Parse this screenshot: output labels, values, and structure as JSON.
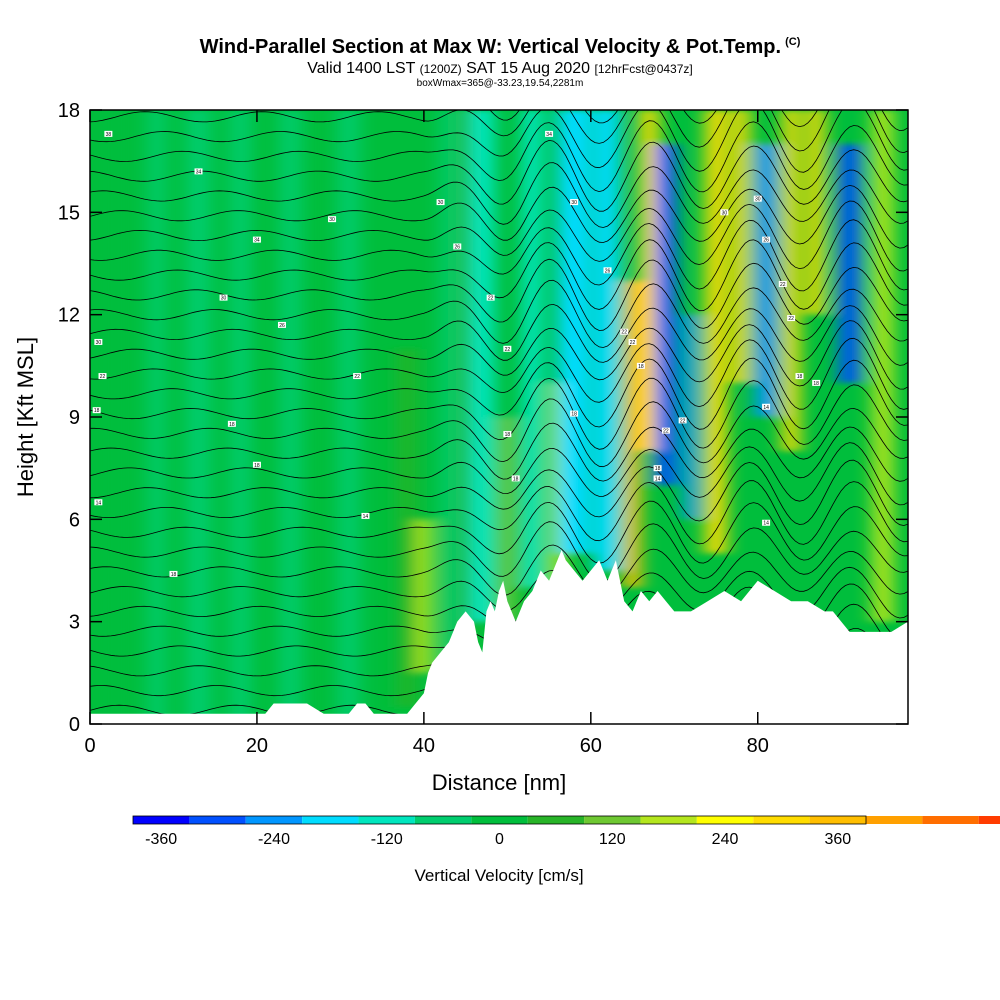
{
  "chart_data": {
    "type": "heatmap",
    "title": "Wind-Parallel Section at Max W: Vertical Velocity & Pot.Temp.",
    "title_tag": "(C)",
    "subtitle_main": "Valid 1400 LST",
    "subtitle_z": "(1200Z)",
    "subtitle_date": "SAT 15 Aug 2020",
    "subtitle_fcst": "[12hrFcst@0437z]",
    "info": "boxWmax=365@-33.23,19.54,2281m",
    "xlabel": "Distance [nm]",
    "ylabel": "Height [Kft MSL]",
    "xlim": [
      0,
      98
    ],
    "ylim": [
      0,
      18
    ],
    "x_ticks": [
      0,
      20,
      40,
      60,
      80
    ],
    "y_ticks": [
      0,
      3,
      6,
      9,
      12,
      15,
      18
    ],
    "colorbar": {
      "title": "Vertical Velocity [cm/s]",
      "min": -390,
      "max": 390,
      "step": 60,
      "tick_values": [
        -360,
        -240,
        -120,
        0,
        120,
        240,
        360
      ],
      "colors": [
        "#0000ff",
        "#0050ff",
        "#0096ff",
        "#00dcff",
        "#00e6be",
        "#00cd6e",
        "#00be3c",
        "#28b428",
        "#6ec832",
        "#b4e61e",
        "#ffff00",
        "#ffdc00",
        "#ffbe00",
        "#ffa000",
        "#ff6e00",
        "#ff3c00",
        "#e61400",
        "#c8003c"
      ]
    },
    "terrain_profile": {
      "x": [
        0,
        2,
        4,
        6,
        8,
        10,
        12,
        14,
        16,
        18,
        20,
        21,
        22,
        24,
        26,
        28,
        30,
        31,
        32,
        33,
        34,
        36,
        38,
        40,
        40.5,
        41,
        42,
        43,
        44,
        45,
        46,
        46.5,
        47,
        47.5,
        48,
        48.5,
        49,
        49.5,
        50,
        51,
        52,
        53,
        54,
        55,
        56,
        56.5,
        57,
        58,
        59,
        60,
        61,
        62,
        63,
        64,
        65,
        66,
        67,
        68,
        69,
        70,
        72,
        74,
        76,
        78,
        80,
        82,
        84,
        86,
        88,
        89,
        90,
        91,
        92,
        94,
        96,
        98
      ],
      "height_kft": [
        0.3,
        0.3,
        0.3,
        0.3,
        0.3,
        0.3,
        0.3,
        0.3,
        0.3,
        0.3,
        0.3,
        0.3,
        0.6,
        0.6,
        0.6,
        0.3,
        0.3,
        0.3,
        0.6,
        0.6,
        0.3,
        0.3,
        0.3,
        0.9,
        1.5,
        1.8,
        2.1,
        2.4,
        3.0,
        3.3,
        3.0,
        2.4,
        2.1,
        3.3,
        3.6,
        3.3,
        3.9,
        4.2,
        3.6,
        3.0,
        3.6,
        3.9,
        4.5,
        4.2,
        4.8,
        5.1,
        4.8,
        4.5,
        4.2,
        4.5,
        4.8,
        4.2,
        4.8,
        3.6,
        3.3,
        3.9,
        3.6,
        3.9,
        3.6,
        3.3,
        3.3,
        3.6,
        3.9,
        3.6,
        4.2,
        3.9,
        3.6,
        3.6,
        3.3,
        3.3,
        3.0,
        2.7,
        2.7,
        2.7,
        2.7,
        3.0
      ]
    },
    "velocity_bands": [
      {
        "x_center": 3,
        "width": 2.5,
        "w_cm_s": -30,
        "z_range": [
          0,
          18
        ]
      },
      {
        "x_center": 8,
        "width": 2.0,
        "w_cm_s": -45,
        "z_range": [
          0,
          18
        ]
      },
      {
        "x_center": 13,
        "width": 3.0,
        "w_cm_s": -45,
        "z_range": [
          0,
          18
        ]
      },
      {
        "x_center": 18,
        "width": 2.5,
        "w_cm_s": -45,
        "z_range": [
          0,
          18
        ]
      },
      {
        "x_center": 24,
        "width": 2.5,
        "w_cm_s": -45,
        "z_range": [
          0,
          18
        ]
      },
      {
        "x_center": 31,
        "width": 2.5,
        "w_cm_s": -60,
        "z_range": [
          0,
          18
        ]
      },
      {
        "x_center": 38,
        "width": 2.0,
        "w_cm_s": 60,
        "z_range": [
          0.5,
          11
        ]
      },
      {
        "x_center": 40,
        "width": 1.8,
        "w_cm_s": 180,
        "z_range": [
          1.5,
          6
        ]
      },
      {
        "x_center": 43,
        "width": 2.0,
        "w_cm_s": -75,
        "z_range": [
          0,
          18
        ]
      },
      {
        "x_center": 45,
        "width": 1.5,
        "w_cm_s": 60,
        "z_range": [
          2,
          18
        ]
      },
      {
        "x_center": 47,
        "width": 3.0,
        "w_cm_s": -100,
        "z_range": [
          3,
          18
        ]
      },
      {
        "x_center": 50,
        "width": 2.0,
        "w_cm_s": 110,
        "z_range": [
          3,
          9
        ]
      },
      {
        "x_center": 53,
        "width": 2.5,
        "w_cm_s": -120,
        "z_range": [
          4,
          18
        ]
      },
      {
        "x_center": 56,
        "width": 1.8,
        "w_cm_s": 150,
        "z_range": [
          4,
          10
        ]
      },
      {
        "x_center": 58,
        "width": 4.0,
        "w_cm_s": -180,
        "z_range": [
          5,
          18
        ]
      },
      {
        "x_center": 62,
        "width": 3.0,
        "w_cm_s": -210,
        "z_range": [
          4.5,
          18
        ]
      },
      {
        "x_center": 65,
        "width": 2.0,
        "w_cm_s": 330,
        "z_range": [
          4,
          13
        ]
      },
      {
        "x_center": 67,
        "width": 2.2,
        "w_cm_s": 270,
        "z_range": [
          8,
          18
        ]
      },
      {
        "x_center": 69,
        "width": 2.5,
        "w_cm_s": -310,
        "z_range": [
          7,
          17
        ]
      },
      {
        "x_center": 72,
        "width": 1.6,
        "w_cm_s": -240,
        "z_range": [
          6,
          12
        ]
      },
      {
        "x_center": 75,
        "width": 2.5,
        "w_cm_s": 270,
        "z_range": [
          5,
          18
        ]
      },
      {
        "x_center": 78,
        "width": 2.0,
        "w_cm_s": 300,
        "z_range": [
          10,
          18
        ]
      },
      {
        "x_center": 81,
        "width": 2.5,
        "w_cm_s": -270,
        "z_range": [
          9,
          17
        ]
      },
      {
        "x_center": 84,
        "width": 2.0,
        "w_cm_s": 270,
        "z_range": [
          8,
          18
        ]
      },
      {
        "x_center": 87,
        "width": 2.0,
        "w_cm_s": 300,
        "z_range": [
          12,
          18
        ]
      },
      {
        "x_center": 91,
        "width": 2.5,
        "w_cm_s": -290,
        "z_range": [
          10,
          17
        ]
      },
      {
        "x_center": 95,
        "width": 2.5,
        "w_cm_s": 150,
        "z_range": [
          3,
          18
        ]
      }
    ],
    "contour_labels": [
      {
        "x": 0.8,
        "z": 9.2,
        "text": "18"
      },
      {
        "x": 2.2,
        "z": 17.3,
        "text": "38"
      },
      {
        "x": 1.5,
        "z": 10.2,
        "text": "22"
      },
      {
        "x": 1.0,
        "z": 11.2,
        "text": "30"
      },
      {
        "x": 13,
        "z": 16.2,
        "text": "34"
      },
      {
        "x": 20,
        "z": 14.2,
        "text": "34"
      },
      {
        "x": 16,
        "z": 12.5,
        "text": "30"
      },
      {
        "x": 23,
        "z": 11.7,
        "text": "26"
      },
      {
        "x": 29,
        "z": 14.8,
        "text": "30"
      },
      {
        "x": 32,
        "z": 10.2,
        "text": "22"
      },
      {
        "x": 17,
        "z": 8.8,
        "text": "18"
      },
      {
        "x": 20,
        "z": 7.6,
        "text": "18"
      },
      {
        "x": 33,
        "z": 6.1,
        "text": "14"
      },
      {
        "x": 10,
        "z": 4.4,
        "text": "18"
      },
      {
        "x": 1,
        "z": 6.5,
        "text": "14"
      },
      {
        "x": 42,
        "z": 15.3,
        "text": "30"
      },
      {
        "x": 44,
        "z": 14.0,
        "text": "26"
      },
      {
        "x": 48,
        "z": 12.5,
        "text": "22"
      },
      {
        "x": 50,
        "z": 11.0,
        "text": "22"
      },
      {
        "x": 55,
        "z": 17.3,
        "text": "34"
      },
      {
        "x": 58,
        "z": 15.3,
        "text": "30"
      },
      {
        "x": 62,
        "z": 13.3,
        "text": "26"
      },
      {
        "x": 64,
        "z": 11.5,
        "text": "22"
      },
      {
        "x": 66,
        "z": 10.5,
        "text": "18"
      },
      {
        "x": 65,
        "z": 11.2,
        "text": "22"
      },
      {
        "x": 58,
        "z": 9.1,
        "text": "18"
      },
      {
        "x": 50,
        "z": 8.5,
        "text": "18"
      },
      {
        "x": 51,
        "z": 7.2,
        "text": "18"
      },
      {
        "x": 69,
        "z": 8.6,
        "text": "22"
      },
      {
        "x": 71,
        "z": 8.9,
        "text": "22"
      },
      {
        "x": 68,
        "z": 7.5,
        "text": "18"
      },
      {
        "x": 68,
        "z": 7.2,
        "text": "14"
      },
      {
        "x": 76,
        "z": 15.0,
        "text": "30"
      },
      {
        "x": 80,
        "z": 15.4,
        "text": "30"
      },
      {
        "x": 81,
        "z": 14.2,
        "text": "26"
      },
      {
        "x": 83,
        "z": 12.9,
        "text": "22"
      },
      {
        "x": 84,
        "z": 11.9,
        "text": "22"
      },
      {
        "x": 85,
        "z": 10.2,
        "text": "18"
      },
      {
        "x": 87,
        "z": 10.0,
        "text": "18"
      },
      {
        "x": 81,
        "z": 9.3,
        "text": "14"
      },
      {
        "x": 81,
        "z": 5.9,
        "text": "14"
      }
    ]
  }
}
